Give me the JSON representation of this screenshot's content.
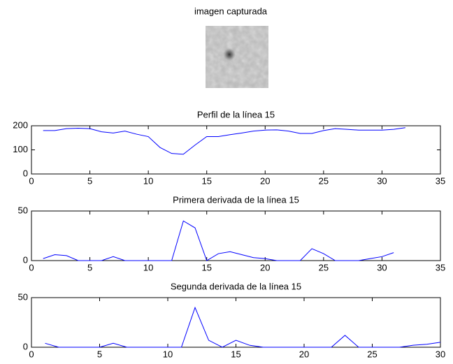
{
  "header": {
    "title": "imagen capturada"
  },
  "chart_data": [
    {
      "type": "line",
      "title": "Perfil de la línea 15",
      "x": [
        1,
        2,
        3,
        4,
        5,
        6,
        7,
        8,
        9,
        10,
        11,
        12,
        13,
        14,
        15,
        16,
        17,
        18,
        19,
        20,
        21,
        22,
        23,
        24,
        25,
        26,
        27,
        28,
        29,
        30,
        31,
        32
      ],
      "series": [
        {
          "color": "#0000ff",
          "values": [
            180,
            180,
            188,
            190,
            188,
            175,
            170,
            178,
            165,
            155,
            110,
            85,
            82,
            120,
            155,
            155,
            163,
            170,
            178,
            182,
            183,
            178,
            168,
            168,
            180,
            188,
            185,
            182,
            182,
            182,
            185,
            192
          ]
        }
      ],
      "xlim": [
        0,
        35
      ],
      "ylim": [
        0,
        200
      ],
      "xticks": [
        0,
        5,
        10,
        15,
        20,
        25,
        30,
        35
      ],
      "yticks": [
        0,
        100,
        200
      ]
    },
    {
      "type": "line",
      "title": "Primera derivada de la línea 15",
      "x": [
        1,
        2,
        3,
        4,
        5,
        6,
        7,
        8,
        9,
        10,
        11,
        12,
        13,
        14,
        15,
        16,
        17,
        18,
        19,
        20,
        21,
        22,
        23,
        24,
        25,
        26,
        27,
        28,
        29,
        30,
        31
      ],
      "series": [
        {
          "color": "#0000ff",
          "values": [
            2,
            6,
            5,
            0,
            0,
            0,
            4,
            0,
            0,
            0,
            0,
            0,
            40,
            33,
            0,
            7,
            9,
            6,
            3,
            2,
            0,
            0,
            0,
            12,
            7,
            0,
            0,
            0,
            2,
            4,
            8
          ]
        }
      ],
      "xlim": [
        0,
        35
      ],
      "ylim": [
        0,
        50
      ],
      "xticks": [
        0,
        5,
        10,
        15,
        20,
        25,
        30,
        35
      ],
      "yticks": [
        0,
        50
      ]
    },
    {
      "type": "line",
      "title": "Segunda derivada de la línea 15",
      "x": [
        1,
        2,
        3,
        4,
        5,
        6,
        7,
        8,
        9,
        10,
        11,
        12,
        13,
        14,
        15,
        16,
        17,
        18,
        19,
        20,
        21,
        22,
        23,
        24,
        25,
        26,
        27,
        28,
        29,
        30
      ],
      "series": [
        {
          "color": "#0000ff",
          "values": [
            4,
            0,
            0,
            0,
            0,
            4,
            0,
            0,
            0,
            0,
            0,
            40,
            7,
            0,
            7,
            2,
            0,
            0,
            0,
            0,
            0,
            0,
            12,
            0,
            0,
            0,
            0,
            2,
            3,
            5
          ]
        }
      ],
      "xlim": [
        0,
        30
      ],
      "ylim": [
        0,
        50
      ],
      "xticks": [
        0,
        5,
        10,
        15,
        20,
        25,
        30
      ],
      "yticks": [
        0,
        50
      ]
    }
  ]
}
